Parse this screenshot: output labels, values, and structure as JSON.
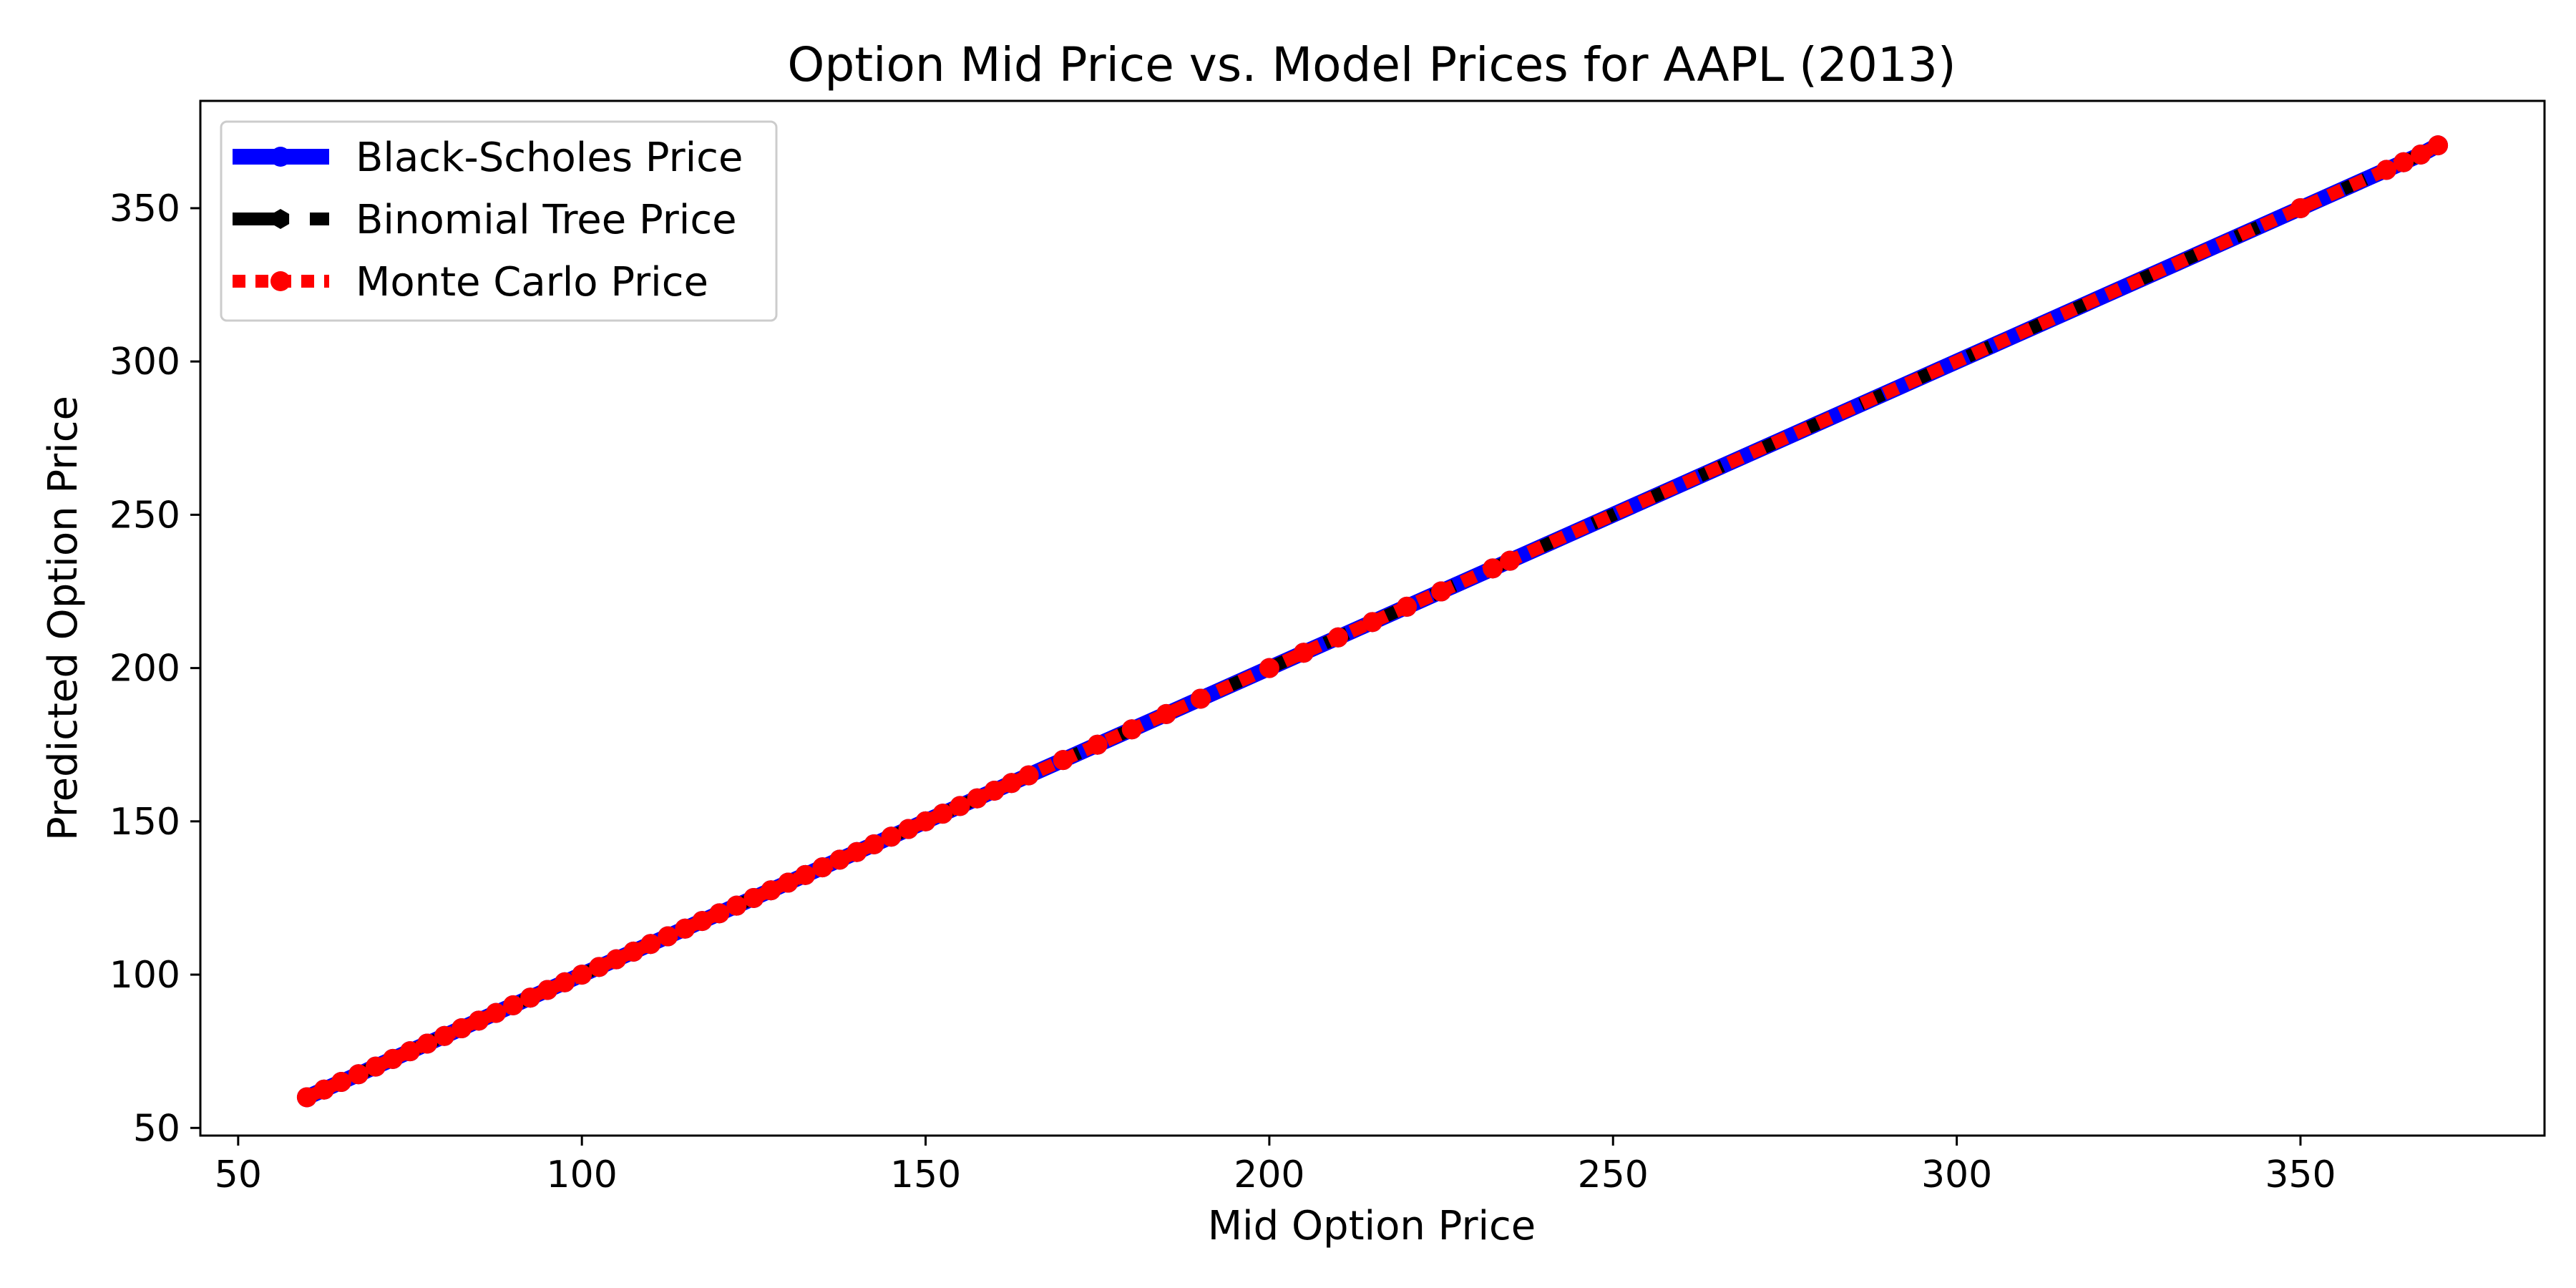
{
  "chart_data": {
    "type": "line",
    "title": "Option Mid Price vs. Model Prices for AAPL (2013)",
    "xlabel": "Mid Option Price",
    "ylabel": "Predicted Option Price",
    "xlim": [
      44.5,
      385.5
    ],
    "ylim": [
      47.5,
      385.0
    ],
    "xticks": [
      50,
      100,
      150,
      200,
      250,
      300,
      350
    ],
    "yticks": [
      50,
      100,
      150,
      200,
      250,
      300,
      350
    ],
    "grid": false,
    "legend_position": "top-left",
    "x": [
      60,
      62.5,
      65,
      67.5,
      70,
      72.5,
      75,
      77.5,
      80,
      82.5,
      85,
      87.5,
      90,
      92.5,
      95,
      97.5,
      100,
      102.5,
      105,
      107.5,
      110,
      112.5,
      115,
      117.5,
      120,
      122.5,
      125,
      127.5,
      130,
      132.5,
      135,
      137.5,
      140,
      142.5,
      145,
      147.5,
      150,
      152.5,
      155,
      157.5,
      160,
      162.5,
      165,
      170,
      175,
      180,
      185,
      190,
      200,
      205,
      210,
      215,
      220,
      225,
      232.5,
      235,
      350,
      362.5,
      365,
      367.5,
      370
    ],
    "series": [
      {
        "name": "Black-Scholes Price",
        "color": "#0000ff",
        "style": "solid",
        "marker": "circle",
        "values": [
          60,
          62.5,
          65,
          67.5,
          70,
          72.5,
          75,
          77.5,
          80,
          82.5,
          85,
          87.5,
          90,
          92.5,
          95,
          97.5,
          100,
          102.5,
          105,
          107.5,
          110,
          112.5,
          115,
          117.5,
          120,
          122.5,
          125,
          127.5,
          130,
          132.5,
          135,
          137.5,
          140,
          142.5,
          145,
          147.5,
          150,
          152.5,
          155,
          157.5,
          160,
          162.5,
          165,
          170,
          175,
          180,
          185,
          190,
          200,
          205,
          210,
          215,
          220,
          225,
          232.5,
          235,
          350,
          362.5,
          365,
          367.5,
          370.5
        ]
      },
      {
        "name": "Binomial Tree Price",
        "color": "#000000",
        "style": "dashed",
        "marker": "hexagon",
        "values": [
          60,
          62.5,
          65,
          67.5,
          70,
          72.5,
          75,
          77.5,
          80,
          82.5,
          85,
          87.5,
          90,
          92.5,
          95,
          97.5,
          100,
          102.5,
          105,
          107.5,
          110,
          112.5,
          115,
          117.5,
          120,
          122.5,
          125,
          127.5,
          130,
          132.5,
          135,
          137.5,
          140,
          142.5,
          145,
          147.5,
          150,
          152.5,
          155,
          157.5,
          160,
          162.5,
          165,
          170,
          175,
          180,
          185,
          190,
          200,
          205,
          210,
          215,
          220,
          225,
          232.5,
          235,
          350,
          362.5,
          365,
          367.5,
          370.5
        ]
      },
      {
        "name": "Monte Carlo Price",
        "color": "#ff0000",
        "style": "dotted",
        "marker": "circle",
        "values": [
          60,
          62.5,
          65,
          67.5,
          70,
          72.5,
          75,
          77.5,
          80,
          82.5,
          85,
          87.5,
          90,
          92.5,
          95,
          97.5,
          100,
          102.5,
          105,
          107.5,
          110,
          112.5,
          115,
          117.5,
          120,
          122.5,
          125,
          127.5,
          130,
          132.5,
          135,
          137.5,
          140,
          142.5,
          145,
          147.5,
          150,
          152.5,
          155,
          157.5,
          160,
          162.5,
          165,
          170,
          175,
          180,
          185,
          190,
          200,
          205,
          210,
          215,
          220,
          225,
          232.5,
          235,
          350,
          362.5,
          365,
          367.5,
          370.5
        ]
      }
    ]
  }
}
